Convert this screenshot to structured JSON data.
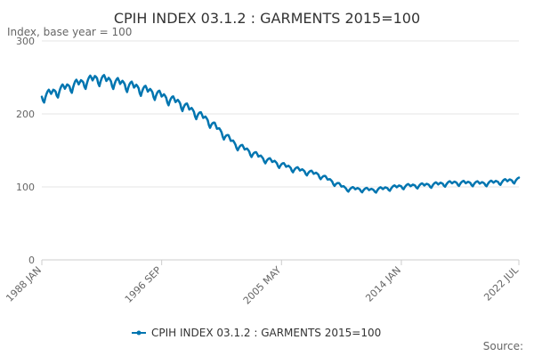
{
  "chart_data": {
    "type": "line",
    "title": "CPIH INDEX 03.1.2 : GARMENTS 2015=100",
    "subtitle": "Index, base year = 100",
    "ylim": [
      0,
      300
    ],
    "yticks": [
      "0",
      "100",
      "200",
      "300"
    ],
    "xticks": [
      "1988 JAN",
      "1996 SEP",
      "2005 MAY",
      "2014 JAN",
      "2022 JUL"
    ],
    "xlim": [
      "1988-01",
      "2022-07"
    ],
    "grid": true,
    "legend": "bottom",
    "series": [
      {
        "name": "CPIH INDEX 03.1.2 : GARMENTS 2015=100",
        "color": "#0075b0",
        "x": [
          "1988-01",
          "1990-01",
          "1992-01",
          "1994-01",
          "1996-01",
          "1998-01",
          "2000-01",
          "2002-01",
          "2004-01",
          "2006-01",
          "2008-01",
          "2010-01",
          "2012-01",
          "2014-01",
          "2016-01",
          "2018-01",
          "2020-01",
          "2022-07"
        ],
        "values": [
          222,
          236,
          247,
          239,
          228,
          213,
          190,
          157,
          138,
          125,
          116,
          97,
          95,
          100,
          102,
          105,
          104,
          109
        ]
      }
    ]
  },
  "source_label": "Source:"
}
